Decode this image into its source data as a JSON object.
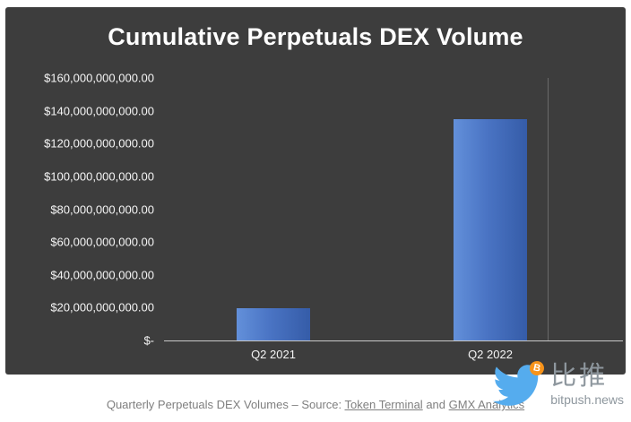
{
  "chart_data": {
    "type": "bar",
    "title": "Cumulative Perpetuals DEX Volume",
    "categories": [
      "Q2 2021",
      "Q2 2022"
    ],
    "values": [
      19700000000,
      135000000000
    ],
    "xlabel": "",
    "ylabel": "",
    "ylim": [
      0,
      160000000000
    ],
    "y_ticks_top_down": [
      "$160,000,000,000.00",
      "$140,000,000,000.00",
      "$120,000,000,000.00",
      "$100,000,000,000.00",
      "$80,000,000,000.00",
      "$60,000,000,000.00",
      "$40,000,000,000.00",
      "$20,000,000,000.00",
      "$-"
    ],
    "grid": false,
    "legend": false,
    "background_color": "#3d3d3d",
    "bar_color": "#4a74c4",
    "text_color": "#ffffff"
  },
  "caption": {
    "prefix": "Quarterly Perpetuals DEX Volumes – Source: ",
    "link1": "Token Terminal",
    "middle": " and ",
    "link2": "GMX Analytics"
  },
  "watermark": {
    "brand_cn": "比推",
    "brand_domain": "bitpush.news",
    "bird_color": "#55acee",
    "bitcoin_color": "#f7931a",
    "bitcoin_symbol": "B"
  }
}
